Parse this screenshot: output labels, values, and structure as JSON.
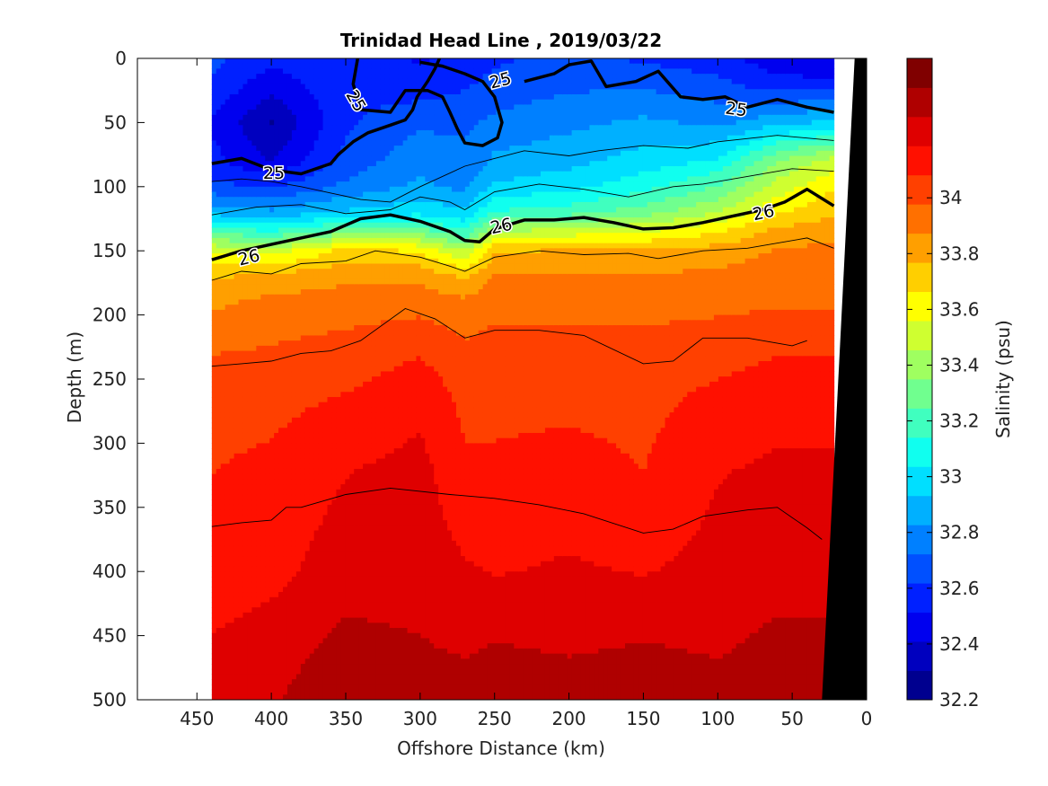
{
  "chart_data": {
    "type": "heatmap",
    "title": "Trinidad Head Line , 2019/03/22",
    "xlabel": "Offshore Distance (km)",
    "ylabel": "Depth (m)",
    "colorbar_label": "Salinity (psu)",
    "xlim": [
      490,
      0
    ],
    "ylim": [
      500,
      0
    ],
    "x_reversed": true,
    "y_reversed": true,
    "x_ticks": [
      450,
      400,
      350,
      300,
      250,
      200,
      150,
      100,
      50,
      0
    ],
    "y_ticks": [
      0,
      50,
      100,
      150,
      200,
      250,
      300,
      350,
      400,
      450,
      500
    ],
    "colorbar_range": [
      32.2,
      34.5
    ],
    "colorbar_ticks": [
      "32.2",
      "32.4",
      "32.6",
      "32.8",
      "33",
      "33.2",
      "33.4",
      "33.6",
      "33.8",
      "34"
    ],
    "data_x_range": [
      440,
      22
    ],
    "colormap": [
      "#00008f",
      "#0000bf",
      "#0000ef",
      "#0020ff",
      "#0050ff",
      "#0080ff",
      "#00b0ff",
      "#00dfff",
      "#10ffef",
      "#40ffbf",
      "#70ff8f",
      "#9fff60",
      "#cfff30",
      "#ffff00",
      "#ffcf00",
      "#ff9f00",
      "#ff7000",
      "#ff4000",
      "#ff1000",
      "#df0000",
      "#af0000",
      "#800000"
    ],
    "salinity_field": [
      {
        "x": 440,
        "depth": [
          0,
          20,
          50,
          80,
          100,
          120,
          135,
          150,
          170,
          190,
          220,
          260,
          320,
          400,
          460,
          500
        ],
        "salinity": [
          32.65,
          32.6,
          32.5,
          32.55,
          32.65,
          32.9,
          33.2,
          33.55,
          33.75,
          33.85,
          33.95,
          34.05,
          34.08,
          34.12,
          34.2,
          34.25
        ]
      },
      {
        "x": 400,
        "depth": [
          0,
          20,
          50,
          80,
          100,
          120,
          135,
          150,
          170,
          190,
          220,
          260,
          320,
          400,
          460,
          500
        ],
        "salinity": [
          32.55,
          32.45,
          32.3,
          32.4,
          32.6,
          32.85,
          33.15,
          33.5,
          33.8,
          33.9,
          33.97,
          34.05,
          34.1,
          34.15,
          34.25,
          34.28
        ]
      },
      {
        "x": 350,
        "depth": [
          0,
          20,
          50,
          80,
          100,
          120,
          135,
          150,
          170,
          190,
          220,
          260,
          320,
          400,
          460,
          500
        ],
        "salinity": [
          32.6,
          32.6,
          32.6,
          32.65,
          32.75,
          32.95,
          33.3,
          33.7,
          33.85,
          33.92,
          34.0,
          34.08,
          34.18,
          34.25,
          34.32,
          34.36
        ]
      },
      {
        "x": 300,
        "depth": [
          0,
          20,
          50,
          80,
          100,
          120,
          135,
          150,
          170,
          190,
          220,
          260,
          320,
          400,
          460,
          500
        ],
        "salinity": [
          32.5,
          32.55,
          32.7,
          32.8,
          32.85,
          33.0,
          33.3,
          33.65,
          33.85,
          33.93,
          34.05,
          34.15,
          34.22,
          34.25,
          34.3,
          34.36
        ]
      },
      {
        "x": 270,
        "depth": [
          0,
          20,
          50,
          80,
          100,
          120,
          135,
          150,
          170,
          190,
          220,
          260,
          320,
          400,
          460,
          500
        ],
        "salinity": [
          32.55,
          32.6,
          32.7,
          32.75,
          32.8,
          32.95,
          33.15,
          33.45,
          33.75,
          33.9,
          33.98,
          34.05,
          34.1,
          34.2,
          34.28,
          34.34
        ]
      },
      {
        "x": 250,
        "depth": [
          0,
          20,
          50,
          80,
          100,
          120,
          135,
          150,
          170,
          190,
          220,
          260,
          320,
          400,
          460,
          500
        ],
        "salinity": [
          32.6,
          32.65,
          32.75,
          32.85,
          32.95,
          33.15,
          33.45,
          33.75,
          33.88,
          33.95,
          34.0,
          34.05,
          34.1,
          34.18,
          34.3,
          34.36
        ]
      },
      {
        "x": 200,
        "depth": [
          0,
          20,
          50,
          80,
          100,
          120,
          135,
          150,
          170,
          190,
          220,
          260,
          320,
          400,
          460,
          500
        ],
        "salinity": [
          32.65,
          32.7,
          32.8,
          32.9,
          33.0,
          33.2,
          33.5,
          33.78,
          33.88,
          33.95,
          34.0,
          34.05,
          34.12,
          34.2,
          34.28,
          34.35
        ]
      },
      {
        "x": 150,
        "depth": [
          0,
          20,
          50,
          80,
          100,
          120,
          135,
          150,
          170,
          190,
          220,
          260,
          320,
          400,
          460,
          500
        ],
        "salinity": [
          32.6,
          32.7,
          32.85,
          32.98,
          33.1,
          33.3,
          33.55,
          33.78,
          33.88,
          33.94,
          34.0,
          34.05,
          34.08,
          34.18,
          34.3,
          34.36
        ]
      },
      {
        "x": 100,
        "depth": [
          0,
          20,
          50,
          80,
          100,
          120,
          135,
          150,
          170,
          190,
          220,
          260,
          320,
          400,
          460,
          500
        ],
        "salinity": [
          32.55,
          32.65,
          32.8,
          33.05,
          33.25,
          33.45,
          33.65,
          33.82,
          33.9,
          33.95,
          34.02,
          34.1,
          34.18,
          34.22,
          34.28,
          34.34
        ]
      },
      {
        "x": 60,
        "depth": [
          0,
          20,
          50,
          80,
          100,
          120,
          135,
          150,
          170,
          190,
          220,
          260,
          320,
          400,
          460,
          500
        ],
        "salinity": [
          32.45,
          32.55,
          32.9,
          33.35,
          33.5,
          33.65,
          33.8,
          33.88,
          33.92,
          33.96,
          34.05,
          34.15,
          34.2,
          34.25,
          34.32,
          34.36
        ]
      },
      {
        "x": 22,
        "depth": [
          0,
          20,
          50,
          80,
          100,
          120,
          135,
          150,
          170,
          190,
          220,
          260,
          320,
          400,
          460,
          500
        ],
        "salinity": [
          32.4,
          32.55,
          32.95,
          33.5,
          33.65,
          33.75,
          33.85,
          33.9,
          33.93,
          33.96,
          34.05,
          34.15,
          34.2,
          34.25,
          34.32,
          34.36
        ]
      }
    ],
    "density_contours": [
      {
        "level": "25",
        "bold": true,
        "points": [
          [
            440,
            82
          ],
          [
            420,
            78
          ],
          [
            400,
            87
          ],
          [
            380,
            90
          ],
          [
            360,
            82
          ],
          [
            355,
            75
          ],
          [
            345,
            65
          ],
          [
            335,
            58
          ],
          [
            320,
            52
          ],
          [
            310,
            48
          ],
          [
            305,
            40
          ],
          [
            302,
            30
          ],
          [
            295,
            18
          ],
          [
            290,
            8
          ],
          [
            287,
            0
          ]
        ]
      },
      {
        "level": "25",
        "bold": true,
        "points": [
          [
            342,
            0
          ],
          [
            345,
            20
          ],
          [
            340,
            40
          ],
          [
            320,
            42
          ],
          [
            310,
            25
          ],
          [
            295,
            25
          ],
          [
            285,
            30
          ],
          [
            280,
            42
          ],
          [
            275,
            55
          ],
          [
            270,
            66
          ],
          [
            258,
            68
          ],
          [
            248,
            62
          ],
          [
            245,
            50
          ],
          [
            250,
            30
          ],
          [
            258,
            18
          ],
          [
            270,
            12
          ],
          [
            285,
            6
          ],
          [
            300,
            3
          ]
        ]
      },
      {
        "level": "25",
        "bold": true,
        "points": [
          [
            230,
            18
          ],
          [
            210,
            12
          ],
          [
            200,
            5
          ],
          [
            185,
            2
          ],
          [
            175,
            22
          ],
          [
            155,
            18
          ],
          [
            140,
            10
          ],
          [
            125,
            30
          ],
          [
            110,
            32
          ],
          [
            95,
            30
          ],
          [
            80,
            38
          ],
          [
            60,
            32
          ],
          [
            40,
            38
          ],
          [
            22,
            42
          ]
        ]
      },
      {
        "level": "26",
        "bold": true,
        "points": [
          [
            440,
            157
          ],
          [
            420,
            150
          ],
          [
            400,
            145
          ],
          [
            380,
            140
          ],
          [
            360,
            135
          ],
          [
            340,
            125
          ],
          [
            320,
            122
          ],
          [
            300,
            127
          ],
          [
            280,
            135
          ],
          [
            270,
            142
          ],
          [
            260,
            143
          ],
          [
            250,
            133
          ],
          [
            230,
            126
          ],
          [
            210,
            126
          ],
          [
            190,
            124
          ],
          [
            170,
            128
          ],
          [
            150,
            133
          ],
          [
            130,
            132
          ],
          [
            110,
            128
          ],
          [
            90,
            123
          ],
          [
            70,
            118
          ],
          [
            55,
            112
          ],
          [
            40,
            102
          ],
          [
            22,
            115
          ]
        ]
      }
    ],
    "contour_labels": [
      "25",
      "25",
      "25",
      "25",
      "26",
      "26",
      "26"
    ],
    "thin_contours": [
      [
        [
          440,
          96
        ],
        [
          420,
          94
        ],
        [
          400,
          96
        ],
        [
          380,
          100
        ],
        [
          360,
          105
        ],
        [
          340,
          110
        ],
        [
          320,
          112
        ],
        [
          300,
          100
        ],
        [
          270,
          84
        ],
        [
          250,
          78
        ],
        [
          230,
          72
        ],
        [
          200,
          76
        ],
        [
          180,
          72
        ],
        [
          150,
          68
        ],
        [
          120,
          70
        ],
        [
          100,
          65
        ],
        [
          60,
          60
        ],
        [
          22,
          64
        ]
      ],
      [
        [
          440,
          122
        ],
        [
          410,
          116
        ],
        [
          380,
          114
        ],
        [
          350,
          121
        ],
        [
          320,
          118
        ],
        [
          300,
          108
        ],
        [
          280,
          112
        ],
        [
          270,
          118
        ],
        [
          250,
          104
        ],
        [
          220,
          98
        ],
        [
          190,
          102
        ],
        [
          160,
          108
        ],
        [
          130,
          100
        ],
        [
          110,
          98
        ],
        [
          80,
          92
        ],
        [
          50,
          86
        ],
        [
          22,
          88
        ]
      ],
      [
        [
          440,
          173
        ],
        [
          420,
          166
        ],
        [
          400,
          168
        ],
        [
          380,
          160
        ],
        [
          350,
          158
        ],
        [
          330,
          150
        ],
        [
          300,
          155
        ],
        [
          280,
          162
        ],
        [
          270,
          166
        ],
        [
          250,
          155
        ],
        [
          220,
          150
        ],
        [
          190,
          153
        ],
        [
          160,
          152
        ],
        [
          140,
          156
        ],
        [
          110,
          150
        ],
        [
          80,
          148
        ],
        [
          40,
          140
        ],
        [
          22,
          148
        ]
      ],
      [
        [
          440,
          240
        ],
        [
          420,
          238
        ],
        [
          400,
          236
        ],
        [
          380,
          230
        ],
        [
          360,
          228
        ],
        [
          340,
          220
        ],
        [
          310,
          195
        ],
        [
          290,
          203
        ],
        [
          270,
          218
        ],
        [
          250,
          212
        ],
        [
          220,
          212
        ],
        [
          190,
          216
        ],
        [
          150,
          238
        ],
        [
          130,
          236
        ],
        [
          110,
          218
        ],
        [
          80,
          218
        ],
        [
          50,
          224
        ],
        [
          40,
          220
        ]
      ],
      [
        [
          440,
          365
        ],
        [
          420,
          362
        ],
        [
          400,
          360
        ],
        [
          390,
          350
        ],
        [
          380,
          350
        ],
        [
          350,
          340
        ],
        [
          320,
          335
        ],
        [
          280,
          340
        ],
        [
          250,
          343
        ],
        [
          220,
          348
        ],
        [
          190,
          355
        ],
        [
          150,
          370
        ],
        [
          130,
          367
        ],
        [
          110,
          357
        ],
        [
          80,
          352
        ],
        [
          60,
          350
        ],
        [
          50,
          358
        ],
        [
          40,
          366
        ],
        [
          30,
          375
        ]
      ]
    ],
    "land_mask": [
      [
        8,
        0
      ],
      [
        30,
        500
      ],
      [
        0,
        500
      ],
      [
        0,
        0
      ]
    ]
  }
}
